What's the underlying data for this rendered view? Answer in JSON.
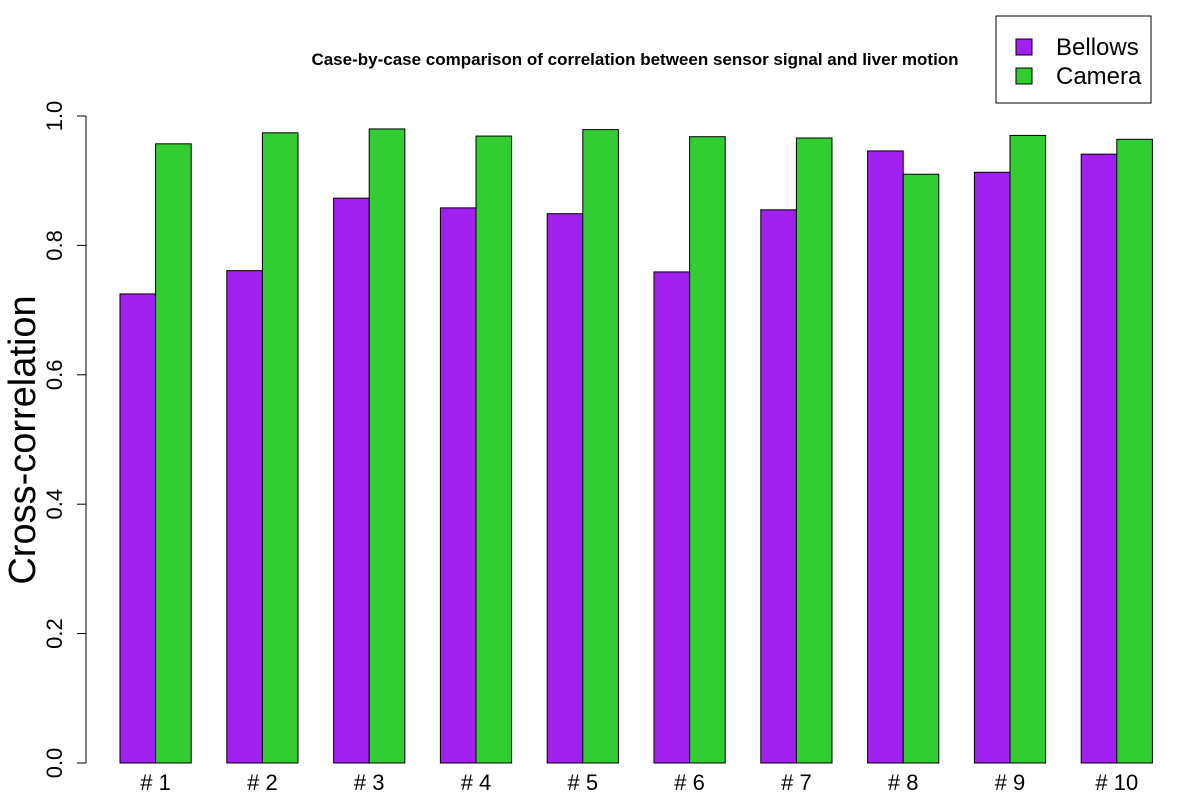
{
  "chart_data": {
    "type": "bar",
    "title": "Case-by-case comparison of correlation between sensor signal and liver motion",
    "xlabel": "",
    "ylabel": "Cross-correlation",
    "categories": [
      "# 1",
      "# 2",
      "# 3",
      "# 4",
      "# 5",
      "# 6",
      "# 7",
      "# 8",
      "# 9",
      "# 10"
    ],
    "series": [
      {
        "name": "Bellows",
        "color": "#a020f0",
        "values": [
          0.725,
          0.761,
          0.873,
          0.858,
          0.849,
          0.759,
          0.855,
          0.946,
          0.913,
          0.941
        ]
      },
      {
        "name": "Camera",
        "color": "#32cd32",
        "values": [
          0.957,
          0.974,
          0.98,
          0.969,
          0.979,
          0.968,
          0.966,
          0.91,
          0.97,
          0.964
        ]
      }
    ],
    "yticks": [
      "0.0",
      "0.2",
      "0.4",
      "0.6",
      "0.8",
      "1.0"
    ],
    "ylim": [
      0,
      1
    ],
    "grid": false,
    "legend_position": "top-right"
  }
}
